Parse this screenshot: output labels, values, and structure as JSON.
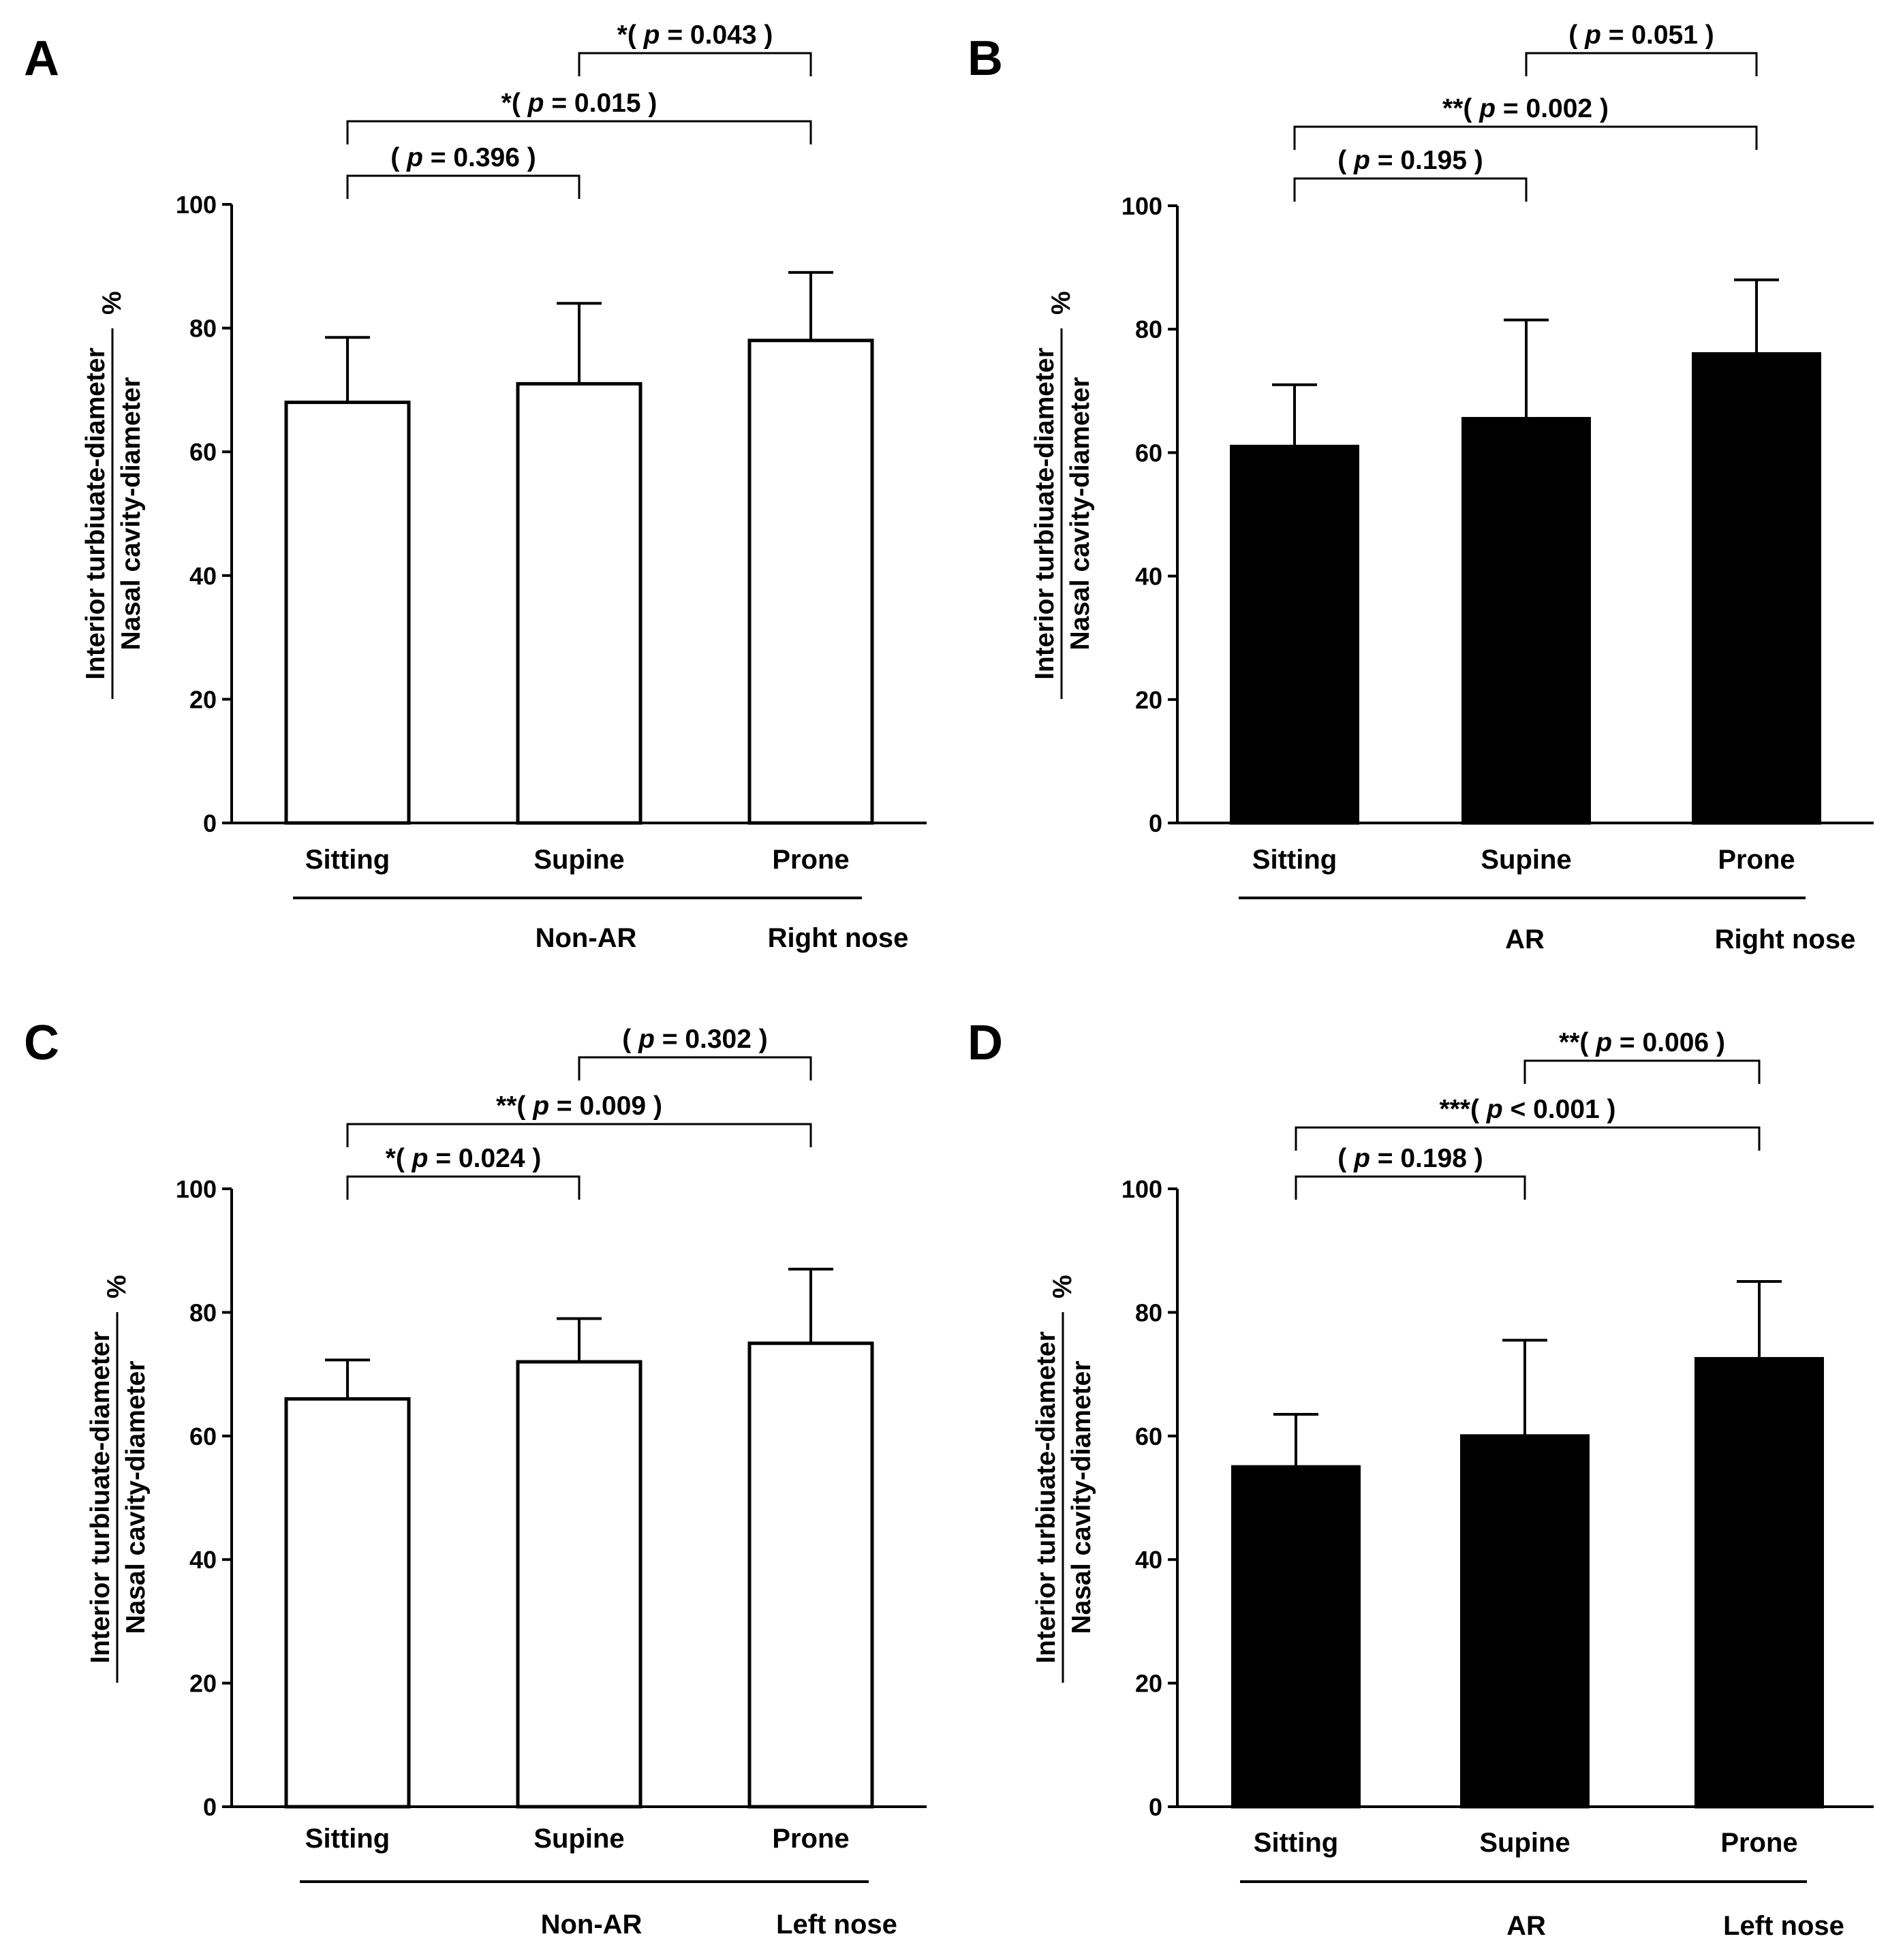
{
  "chart_data": [
    {
      "panel": "A",
      "type": "bar",
      "bar_color": "#ffffff",
      "categories": [
        "Sitting",
        "Supine",
        "Prone"
      ],
      "values": [
        68,
        71,
        78
      ],
      "errors": [
        10.5,
        13,
        11
      ],
      "ylim": [
        0,
        100
      ],
      "yticks": [
        "0",
        "20",
        "40",
        "60",
        "80",
        "100"
      ],
      "ylabel_numerator": "Interior turbiuate-diameter",
      "ylabel_denominator": "Nasal cavity-diameter",
      "ylabel_unit": "%",
      "group_label": "Non-AR",
      "side_label": "Right nose",
      "comparisons": [
        {
          "pair": [
            0,
            1
          ],
          "stars": "",
          "p": "0.396",
          "op": "="
        },
        {
          "pair": [
            0,
            2
          ],
          "stars": "*",
          "p": "0.015",
          "op": "="
        },
        {
          "pair": [
            1,
            2
          ],
          "stars": "*",
          "p": "0.043",
          "op": "="
        }
      ]
    },
    {
      "panel": "B",
      "type": "bar",
      "bar_color": "#000000",
      "categories": [
        "Sitting",
        "Supine",
        "Prone"
      ],
      "values": [
        61,
        65.5,
        76
      ],
      "errors": [
        10,
        16,
        12
      ],
      "ylim": [
        0,
        100
      ],
      "yticks": [
        "0",
        "20",
        "40",
        "60",
        "80",
        "100"
      ],
      "ylabel_numerator": "Interior turbiuate-diameter",
      "ylabel_denominator": "Nasal cavity-diameter",
      "ylabel_unit": "%",
      "group_label": "AR",
      "side_label": "Right nose",
      "comparisons": [
        {
          "pair": [
            0,
            1
          ],
          "stars": "",
          "p": "0.195",
          "op": "="
        },
        {
          "pair": [
            0,
            2
          ],
          "stars": "**",
          "p": "0.002",
          "op": "="
        },
        {
          "pair": [
            1,
            2
          ],
          "stars": "",
          "p": "0.051",
          "op": "="
        }
      ]
    },
    {
      "panel": "C",
      "type": "bar",
      "bar_color": "#ffffff",
      "categories": [
        "Sitting",
        "Supine",
        "Prone"
      ],
      "values": [
        66,
        72,
        75
      ],
      "errors": [
        6.3,
        7,
        12
      ],
      "ylim": [
        0,
        100
      ],
      "yticks": [
        "0",
        "20",
        "40",
        "60",
        "80",
        "100"
      ],
      "ylabel_numerator": "Interior turbiuate-diameter",
      "ylabel_denominator": "Nasal cavity-diameter",
      "ylabel_unit": "%",
      "group_label": "Non-AR",
      "side_label": "Left nose",
      "comparisons": [
        {
          "pair": [
            0,
            1
          ],
          "stars": "*",
          "p": "0.024",
          "op": "="
        },
        {
          "pair": [
            0,
            2
          ],
          "stars": "**",
          "p": "0.009",
          "op": "="
        },
        {
          "pair": [
            1,
            2
          ],
          "stars": "",
          "p": "0.302",
          "op": "="
        }
      ]
    },
    {
      "panel": "D",
      "type": "bar",
      "bar_color": "#000000",
      "categories": [
        "Sitting",
        "Supine",
        "Prone"
      ],
      "values": [
        55,
        60,
        72.5
      ],
      "errors": [
        8.5,
        15.5,
        12.5
      ],
      "ylim": [
        0,
        100
      ],
      "yticks": [
        "0",
        "20",
        "40",
        "60",
        "80",
        "100"
      ],
      "ylabel_numerator": "Interior turbiuate-diameter",
      "ylabel_denominator": "Nasal cavity-diameter",
      "ylabel_unit": "%",
      "group_label": "AR",
      "side_label": "Left nose",
      "comparisons": [
        {
          "pair": [
            0,
            1
          ],
          "stars": "",
          "p": "0.198",
          "op": "="
        },
        {
          "pair": [
            0,
            2
          ],
          "stars": "***",
          "p": "0.001",
          "op": "<"
        },
        {
          "pair": [
            1,
            2
          ],
          "stars": "**",
          "p": "0.006",
          "op": "="
        }
      ]
    }
  ]
}
